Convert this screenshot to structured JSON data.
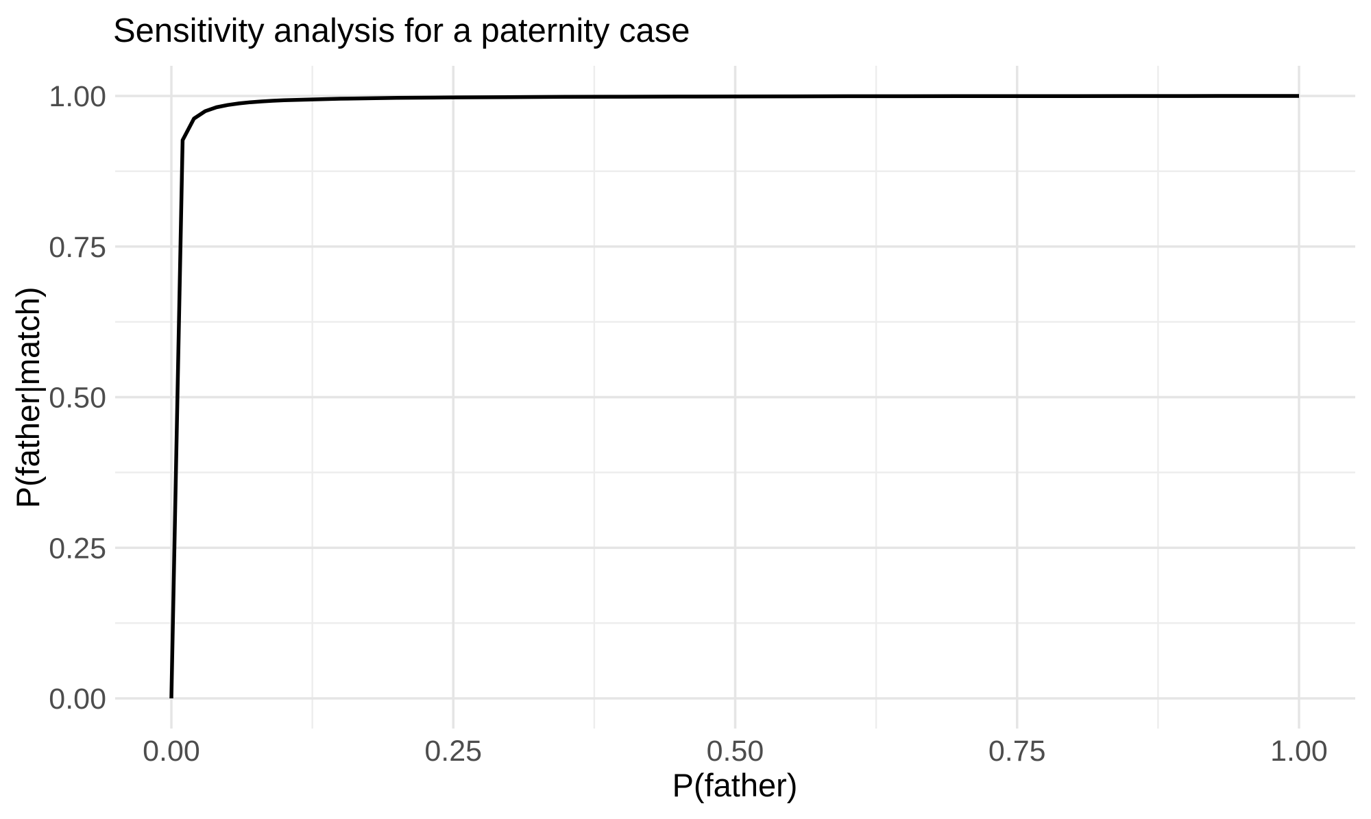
{
  "chart_data": {
    "type": "line",
    "title": "Sensitivity analysis for a paternity case",
    "xlabel": "P(father)",
    "ylabel": "P(father|match)",
    "xlim": [
      0,
      1
    ],
    "ylim": [
      0,
      1
    ],
    "x_ticks": {
      "values": [
        0,
        0.25,
        0.5,
        0.75,
        1
      ],
      "labels": [
        "0.00",
        "0.25",
        "0.50",
        "0.75",
        "1.00"
      ]
    },
    "y_ticks": {
      "values": [
        0,
        0.25,
        0.5,
        0.75,
        1
      ],
      "labels": [
        "0.00",
        "0.25",
        "0.50",
        "0.75",
        "1.00"
      ]
    },
    "x_minor_ticks": [
      0.125,
      0.375,
      0.625,
      0.875
    ],
    "y_minor_ticks": [
      0.125,
      0.375,
      0.625,
      0.875
    ],
    "grid": {
      "major": true,
      "minor": true
    },
    "legend_position": "none",
    "theme": "minimal-white",
    "colors": {
      "line": "#000000",
      "grid_major": "#E5E5E5",
      "grid_minor": "#EDEDED",
      "tick_label": "#4D4D4D",
      "title": "#000000",
      "axis_title": "#000000",
      "background": "#FFFFFF"
    },
    "series": [
      {
        "name": "P(father|match)",
        "points": [
          [
            0,
            0
          ],
          [
            0.01,
            0.9266
          ],
          [
            0.02,
            0.9623
          ],
          [
            0.03,
            0.9748
          ],
          [
            0.04,
            0.9812
          ],
          [
            0.05,
            0.985
          ],
          [
            0.06,
            0.9876
          ],
          [
            0.07,
            0.9895
          ],
          [
            0.08,
            0.9909
          ],
          [
            0.09,
            0.992
          ],
          [
            0.1,
            0.9929
          ],
          [
            0.15,
            0.9955
          ],
          [
            0.2,
            0.9968
          ],
          [
            0.25,
            0.9976
          ],
          [
            0.3,
            0.9981
          ],
          [
            0.35,
            0.9985
          ],
          [
            0.4,
            0.9988
          ],
          [
            0.45,
            0.999
          ],
          [
            0.5,
            0.9992
          ],
          [
            0.55,
            0.9993
          ],
          [
            0.6,
            0.9995
          ],
          [
            0.65,
            0.9996
          ],
          [
            0.7,
            0.9997
          ],
          [
            0.75,
            0.9997
          ],
          [
            0.8,
            0.9998
          ],
          [
            0.85,
            0.9999
          ],
          [
            0.9,
            0.9999
          ],
          [
            0.95,
            1
          ],
          [
            1,
            1
          ]
        ]
      }
    ]
  }
}
